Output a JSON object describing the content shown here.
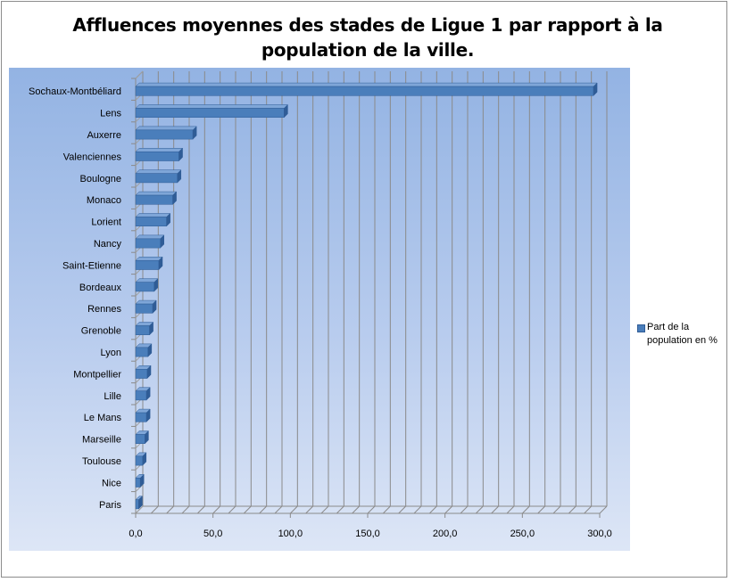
{
  "chart_data": {
    "type": "bar",
    "orientation": "horizontal",
    "title": "Affluences moyennes des stades de Ligue 1 par rapport à la population de la ville.",
    "categories": [
      "Sochaux-Montbéliard",
      "Lens",
      "Auxerre",
      "Valenciennes",
      "Boulogne",
      "Monaco",
      "Lorient",
      "Nancy",
      "Saint-Etienne",
      "Bordeaux",
      "Rennes",
      "Grenoble",
      "Lyon",
      "Montpellier",
      "Lille",
      "Le Mans",
      "Marseille",
      "Toulouse",
      "Nice",
      "Paris"
    ],
    "series": [
      {
        "name": "Part de la population en %",
        "values": [
          296,
          96,
          37,
          28,
          27,
          24,
          20,
          16,
          15,
          12,
          11,
          9,
          8,
          7.5,
          7,
          7,
          6,
          4.5,
          3,
          2
        ]
      }
    ],
    "xlim": [
      0,
      300
    ],
    "xticks": [
      "0,0",
      "50,0",
      "100,0",
      "150,0",
      "200,0",
      "250,0",
      "300,0"
    ],
    "grid": true,
    "legend_position": "right",
    "colors": {
      "bar": "#4a7ebb",
      "bar_top": "#7fa6d8",
      "bar_side": "#2f5c96",
      "background_top": "#93b3e3",
      "background_bottom": "#dde6f6"
    }
  }
}
